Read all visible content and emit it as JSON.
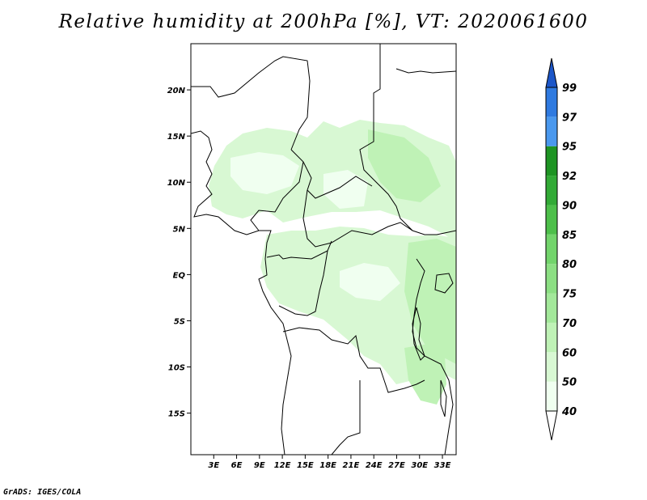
{
  "title": "Relative humidity at 200hPa [%], VT: 2020061600",
  "footer": "GrADS: IGES/COLA",
  "map": {
    "variable": "Relative humidity",
    "level": "200hPa",
    "units": "%",
    "valid_time": "2020061600",
    "lon_range": [
      0,
      34.8
    ],
    "lat_range": [
      -19.5,
      25
    ],
    "lon_ticks": [
      "3E",
      "6E",
      "9E",
      "12E",
      "15E",
      "18E",
      "21E",
      "24E",
      "27E",
      "30E",
      "33E"
    ],
    "lat_ticks": [
      "20N",
      "15N",
      "10N",
      "5N",
      "EQ",
      "5S",
      "10S",
      "15S"
    ],
    "lon_tick_values": [
      3,
      6,
      9,
      12,
      15,
      18,
      21,
      24,
      27,
      30,
      33
    ],
    "lat_tick_values": [
      20,
      15,
      10,
      5,
      0,
      -5,
      -10,
      -15
    ]
  },
  "colorbar": {
    "levels": [
      "40",
      "50",
      "60",
      "70",
      "75",
      "80",
      "85",
      "90",
      "92",
      "95",
      "97",
      "99"
    ],
    "colors": [
      "#f0fff0",
      "#d8f8d3",
      "#bff2b6",
      "#a3e89a",
      "#8cdf83",
      "#72d46b",
      "#4dbf4a",
      "#32aa36",
      "#1e9423",
      "#4a98ee",
      "#2f7ae0",
      "#1c56c8"
    ]
  }
}
